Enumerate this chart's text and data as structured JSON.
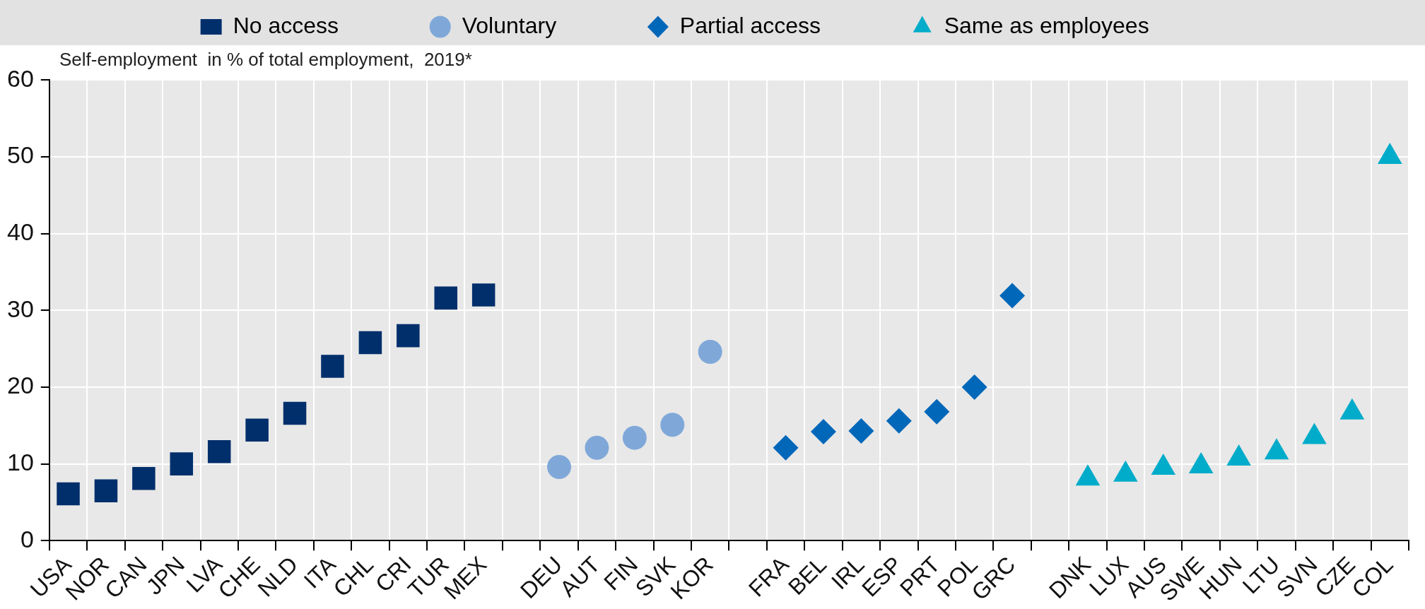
{
  "chart_data": {
    "type": "scatter",
    "ylabel": "Self-employment  in % of total employment,  2019*",
    "categories": [
      "USA",
      "NOR",
      "CAN",
      "JPN",
      "LVA",
      "CHE",
      "NLD",
      "ITA",
      "CHL",
      "CRI",
      "TUR",
      "MEX",
      null,
      "DEU",
      "AUT",
      "FIN",
      "SVK",
      "KOR",
      null,
      "FRA",
      "BEL",
      "IRL",
      "ESP",
      "PRT",
      "POL",
      "GRC",
      null,
      "DNK",
      "LUX",
      "AUS",
      "SWE",
      "HUN",
      "LTU",
      "SVN",
      "CZE",
      "COL"
    ],
    "series": [
      {
        "name": "No access",
        "color": "#002f6c",
        "marker": "square",
        "values": [
          6.1,
          6.5,
          8.1,
          10.0,
          11.6,
          14.4,
          16.6,
          22.7,
          25.8,
          26.7,
          31.6,
          32.0,
          null,
          null,
          null,
          null,
          null,
          null,
          null,
          null,
          null,
          null,
          null,
          null,
          null,
          null,
          null,
          null,
          null,
          null,
          null,
          null,
          null,
          null,
          null,
          null
        ]
      },
      {
        "name": "Voluntary",
        "color": "#7fa8d9",
        "marker": "circle",
        "values": [
          null,
          null,
          null,
          null,
          null,
          null,
          null,
          null,
          null,
          null,
          null,
          null,
          null,
          9.6,
          12.1,
          13.4,
          15.1,
          24.6,
          null,
          null,
          null,
          null,
          null,
          null,
          null,
          null,
          null,
          null,
          null,
          null,
          null,
          null,
          null,
          null,
          null,
          null
        ]
      },
      {
        "name": "Partial access",
        "color": "#0067b9",
        "marker": "diamond",
        "values": [
          null,
          null,
          null,
          null,
          null,
          null,
          null,
          null,
          null,
          null,
          null,
          null,
          null,
          null,
          null,
          null,
          null,
          null,
          null,
          12.1,
          14.2,
          14.3,
          15.6,
          16.8,
          20.0,
          31.9,
          null,
          null,
          null,
          null,
          null,
          null,
          null,
          null,
          null,
          null
        ]
      },
      {
        "name": "Same as employees",
        "color": "#00acca",
        "marker": "triangle",
        "values": [
          null,
          null,
          null,
          null,
          null,
          null,
          null,
          null,
          null,
          null,
          null,
          null,
          null,
          null,
          null,
          null,
          null,
          null,
          null,
          null,
          null,
          null,
          null,
          null,
          null,
          null,
          null,
          8.1,
          8.6,
          9.5,
          9.7,
          10.7,
          11.5,
          13.5,
          16.7,
          50.0
        ]
      }
    ],
    "ylim": [
      0,
      60
    ],
    "yticks": [
      0,
      10,
      20,
      30,
      40,
      50,
      60
    ],
    "grid": true,
    "legend": "top"
  }
}
